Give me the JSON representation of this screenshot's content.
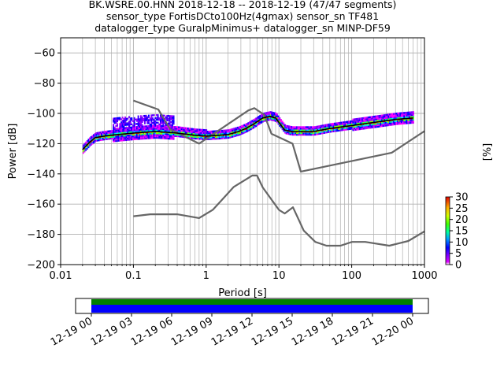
{
  "title": {
    "line1": "BK.WSRE.00.HNN   2018-12-18 -- 2018-12-19  (47/47 segments)",
    "line2": "sensor_type FortisDCto100Hz(4gmax) sensor_sn TF481",
    "line3": "datalogger_type GuralpMinimus+ datalogger_sn MINP-DF59"
  },
  "chart_data": {
    "type": "heatmap",
    "xlabel": "Period [s]",
    "ylabel": "Power [dB]",
    "xscale": "log",
    "xlim": [
      0.01,
      1000
    ],
    "ylim": [
      -200,
      -50
    ],
    "x_ticks": [
      "0.01",
      "0.1",
      "1",
      "10",
      "100",
      "1000"
    ],
    "y_ticks": [
      "−60",
      "−80",
      "−100",
      "−120",
      "−140",
      "−160",
      "−180",
      "−200"
    ],
    "grid": true,
    "noise_models": {
      "nhnm": [
        [
          0.1,
          -91.5
        ],
        [
          0.22,
          -97.4
        ],
        [
          0.32,
          -110.5
        ],
        [
          0.8,
          -120
        ],
        [
          3.8,
          -98
        ],
        [
          4.6,
          -96.5
        ],
        [
          6.3,
          -101
        ],
        [
          7.9,
          -113.5
        ],
        [
          15.4,
          -120
        ],
        [
          20,
          -138.5
        ],
        [
          354.8,
          -126
        ],
        [
          10000,
          -80
        ]
      ],
      "nlnm": [
        [
          0.1,
          -168
        ],
        [
          0.17,
          -166.7
        ],
        [
          0.4,
          -166.7
        ],
        [
          0.8,
          -169.2
        ],
        [
          1.24,
          -163.7
        ],
        [
          2.4,
          -148.6
        ],
        [
          4.3,
          -141.1
        ],
        [
          5,
          -141.1
        ],
        [
          6,
          -149
        ],
        [
          10,
          -163.8
        ],
        [
          12,
          -166.2
        ],
        [
          15.6,
          -162.1
        ],
        [
          21.9,
          -177.5
        ],
        [
          31.6,
          -185
        ],
        [
          45,
          -187.5
        ],
        [
          70,
          -187.5
        ],
        [
          101,
          -185
        ],
        [
          154,
          -185
        ],
        [
          328,
          -187.5
        ],
        [
          600,
          -184.4
        ],
        [
          1000,
          -178
        ]
      ]
    },
    "median": [
      [
        0.02,
        -124
      ],
      [
        0.025,
        -119
      ],
      [
        0.03,
        -116
      ],
      [
        0.04,
        -115
      ],
      [
        0.06,
        -114
      ],
      [
        0.1,
        -113
      ],
      [
        0.2,
        -112
      ],
      [
        0.4,
        -113
      ],
      [
        0.7,
        -114.5
      ],
      [
        1,
        -115
      ],
      [
        1.5,
        -114.5
      ],
      [
        2,
        -114
      ],
      [
        2.8,
        -112
      ],
      [
        3.5,
        -110
      ],
      [
        4.5,
        -107
      ],
      [
        6,
        -103
      ],
      [
        7.5,
        -102
      ],
      [
        9,
        -103
      ],
      [
        10,
        -106
      ],
      [
        12,
        -111
      ],
      [
        15,
        -112
      ],
      [
        20,
        -112
      ],
      [
        30,
        -112
      ],
      [
        50,
        -110
      ],
      [
        100,
        -108
      ],
      [
        200,
        -106
      ],
      [
        400,
        -104
      ],
      [
        700,
        -103
      ]
    ],
    "colorbar": {
      "label": "[%]",
      "ticks": [
        "0",
        "5",
        "10",
        "15",
        "20",
        "25",
        "30"
      ],
      "range": [
        0,
        30
      ]
    },
    "timeline": {
      "ticks": [
        "12-19 00",
        "12-19 03",
        "12-19 06",
        "12-19 09",
        "12-19 12",
        "12-19 15",
        "12-19 18",
        "12-19 21",
        "12-20 00"
      ],
      "bands": [
        "green",
        "blue"
      ]
    }
  }
}
